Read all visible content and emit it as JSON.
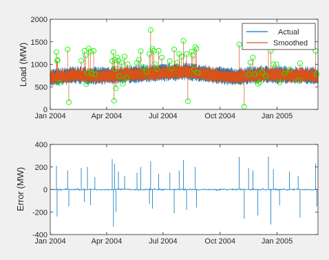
{
  "colors": {
    "figure_bg": "#f0f0f0",
    "axes_bg": "#ffffff",
    "actual": "#0072BD",
    "smoothed": "#D95319",
    "outlier_marker": "#00ff00",
    "axis": "#262626"
  },
  "chart_data": [
    {
      "type": "line",
      "ylabel": "Load (MW)",
      "xlabel": "",
      "xlim": [
        "2004-01-01",
        "2005-03-08"
      ],
      "ylim": [
        0,
        2000
      ],
      "xticks": [
        "2004-01-01",
        "2004-04-01",
        "2004-07-01",
        "2004-10-01",
        "2005-01-01"
      ],
      "xtick_labels": [
        "Jan 2004",
        "Apr 2004",
        "Jul 2004",
        "Oct 2004",
        "Jan 2005"
      ],
      "yticks": [
        0,
        500,
        1000,
        1500,
        2000
      ],
      "ytick_labels": [
        "0",
        "500",
        "1000",
        "1500",
        "2000"
      ],
      "legend": {
        "placement": "top-right",
        "entries": [
          "Actual",
          "Smoothed"
        ]
      },
      "series": [
        {
          "name": "Actual",
          "color": "#0072BD",
          "baseline": [
            [
              0,
              680
            ],
            [
              40,
              740
            ],
            [
              75,
              720
            ],
            [
              110,
              740
            ],
            [
              170,
              780
            ],
            [
              220,
              820
            ],
            [
              270,
              730
            ],
            [
              300,
              700
            ],
            [
              340,
              750
            ],
            [
              390,
              740
            ],
            [
              432,
              720
            ]
          ],
          "band": [
            -180,
            230
          ]
        },
        {
          "name": "Smoothed",
          "color": "#D95319",
          "baseline": [
            [
              0,
              680
            ],
            [
              40,
              740
            ],
            [
              75,
              720
            ],
            [
              110,
              740
            ],
            [
              170,
              780
            ],
            [
              220,
              820
            ],
            [
              270,
              730
            ],
            [
              300,
              700
            ],
            [
              340,
              750
            ],
            [
              390,
              740
            ],
            [
              432,
              720
            ]
          ],
          "band": [
            -150,
            200
          ]
        }
      ],
      "outliers": [
        [
          10,
          1270
        ],
        [
          12,
          1090
        ],
        [
          11,
          1080
        ],
        [
          15,
          590
        ],
        [
          28,
          1330
        ],
        [
          30,
          160
        ],
        [
          50,
          1080
        ],
        [
          55,
          1300
        ],
        [
          57,
          1200
        ],
        [
          58,
          560
        ],
        [
          60,
          810
        ],
        [
          62,
          1350
        ],
        [
          65,
          1280
        ],
        [
          67,
          800
        ],
        [
          70,
          1300
        ],
        [
          72,
          780
        ],
        [
          100,
          1070
        ],
        [
          102,
          1270
        ],
        [
          103,
          190
        ],
        [
          104,
          1100
        ],
        [
          105,
          900
        ],
        [
          106,
          470
        ],
        [
          108,
          1150
        ],
        [
          110,
          1080
        ],
        [
          112,
          730
        ],
        [
          115,
          1040
        ],
        [
          117,
          570
        ],
        [
          120,
          1170
        ],
        [
          123,
          700
        ],
        [
          125,
          1000
        ],
        [
          140,
          1030
        ],
        [
          143,
          1100
        ],
        [
          146,
          1290
        ],
        [
          150,
          940
        ],
        [
          155,
          830
        ],
        [
          160,
          1230
        ],
        [
          162,
          1760
        ],
        [
          165,
          1340
        ],
        [
          167,
          1300
        ],
        [
          169,
          1000
        ],
        [
          172,
          900
        ],
        [
          175,
          1300
        ],
        [
          180,
          1150
        ],
        [
          193,
          1070
        ],
        [
          196,
          910
        ],
        [
          200,
          1330
        ],
        [
          205,
          1040
        ],
        [
          208,
          1230
        ],
        [
          212,
          1170
        ],
        [
          215,
          1520
        ],
        [
          220,
          1230
        ],
        [
          222,
          180
        ],
        [
          228,
          1280
        ],
        [
          230,
          1200
        ],
        [
          232,
          890
        ],
        [
          234,
          1380
        ],
        [
          236,
          1340
        ],
        [
          238,
          810
        ],
        [
          305,
          1440
        ],
        [
          313,
          60
        ],
        [
          320,
          780
        ],
        [
          323,
          1040
        ],
        [
          327,
          1150
        ],
        [
          330,
          780
        ],
        [
          335,
          570
        ],
        [
          338,
          600
        ],
        [
          342,
          820
        ],
        [
          348,
          730
        ],
        [
          352,
          1550
        ],
        [
          356,
          1300
        ],
        [
          360,
          1000
        ],
        [
          365,
          1000
        ],
        [
          370,
          600
        ],
        [
          378,
          800
        ],
        [
          386,
          880
        ],
        [
          400,
          640
        ],
        [
          403,
          1020
        ],
        [
          428,
          1300
        ],
        [
          430,
          780
        ]
      ]
    },
    {
      "type": "line",
      "ylabel": "Error (MW)",
      "xlabel": "",
      "xlim": [
        "2004-01-01",
        "2005-03-08"
      ],
      "ylim": [
        -400,
        400
      ],
      "xticks": [
        "2004-01-01",
        "2004-04-01",
        "2004-07-01",
        "2004-10-01",
        "2005-01-01"
      ],
      "xtick_labels": [
        "Jan 2004",
        "Apr 2004",
        "Jul 2004",
        "Oct 2004",
        "Jan 2005"
      ],
      "yticks": [
        -400,
        -200,
        0,
        200,
        400
      ],
      "ytick_labels": [
        "-400",
        "-200",
        "0",
        "200",
        "400"
      ],
      "series": [
        {
          "name": "Error",
          "color": "#0072BD",
          "noise": 12,
          "spikes": [
            [
              10,
              210
            ],
            [
              11,
              -240
            ],
            [
              28,
              170
            ],
            [
              30,
              -150
            ],
            [
              50,
              190
            ],
            [
              55,
              -110
            ],
            [
              60,
              200
            ],
            [
              65,
              -140
            ],
            [
              72,
              110
            ],
            [
              100,
              270
            ],
            [
              102,
              -330
            ],
            [
              104,
              230
            ],
            [
              106,
              -200
            ],
            [
              110,
              160
            ],
            [
              120,
              120
            ],
            [
              140,
              150
            ],
            [
              146,
              200
            ],
            [
              160,
              -130
            ],
            [
              162,
              250
            ],
            [
              165,
              -170
            ],
            [
              175,
              140
            ],
            [
              193,
              150
            ],
            [
              200,
              -210
            ],
            [
              208,
              170
            ],
            [
              215,
              260
            ],
            [
              220,
              -180
            ],
            [
              234,
              200
            ],
            [
              236,
              -160
            ],
            [
              305,
              290
            ],
            [
              313,
              -260
            ],
            [
              320,
              190
            ],
            [
              327,
              170
            ],
            [
              335,
              -230
            ],
            [
              352,
              290
            ],
            [
              356,
              -310
            ],
            [
              360,
              180
            ],
            [
              370,
              -140
            ],
            [
              386,
              160
            ],
            [
              400,
              120
            ],
            [
              403,
              -250
            ],
            [
              428,
              230
            ],
            [
              430,
              -150
            ]
          ]
        }
      ]
    }
  ]
}
